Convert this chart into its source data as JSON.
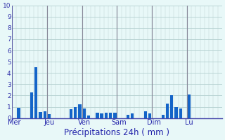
{
  "title": "Précipitations 24h ( mm )",
  "bar_color": "#1464c8",
  "bg_color": "#e8f8f8",
  "grid_color_h": "#a8c8c8",
  "grid_color_v": "#b8d0d0",
  "axis_line_color": "#4444aa",
  "day_line_color": "#888899",
  "ylim": [
    0,
    10
  ],
  "yticks": [
    0,
    1,
    2,
    3,
    4,
    5,
    6,
    7,
    8,
    9,
    10
  ],
  "day_labels": [
    "Mer",
    "Jeu",
    "Ven",
    "Sam",
    "Dim",
    "Lu"
  ],
  "num_bars": 48,
  "day_starts": [
    0,
    8,
    16,
    24,
    32,
    40
  ],
  "values": [
    0.0,
    0.9,
    0.0,
    0.0,
    2.3,
    4.5,
    0.55,
    0.6,
    0.35,
    0.0,
    0.0,
    0.0,
    0.0,
    0.8,
    1.0,
    1.2,
    0.85,
    0.2,
    0.0,
    0.5,
    0.4,
    0.5,
    0.5,
    0.45,
    0.0,
    0.0,
    0.3,
    0.4,
    0.0,
    0.0,
    0.6,
    0.4,
    0.0,
    0.0,
    0.3,
    1.3,
    2.0,
    1.0,
    0.85,
    0.0,
    2.1,
    0.0,
    0.0,
    0.0,
    0.0,
    0.0,
    0.0,
    0.0
  ]
}
